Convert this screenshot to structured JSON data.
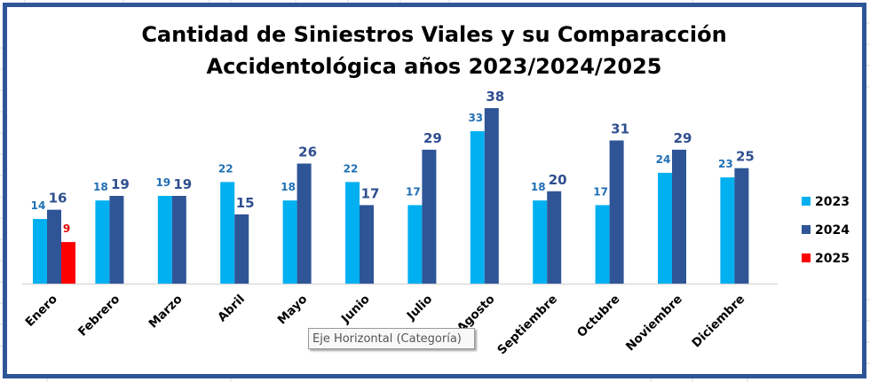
{
  "chart_data": {
    "type": "bar",
    "title": [
      "Cantidad de Siniestros Viales y su Comparacción",
      "Accidentológica años 2023/2024/2025"
    ],
    "xlabel": "",
    "ylabel": "",
    "ylim": [
      0,
      40
    ],
    "grid": false,
    "legend_position": "right",
    "categories": [
      "Enero",
      "Febrero",
      "Marzo",
      "Abril",
      "Mayo",
      "Junio",
      "Julio",
      "Agosto",
      "Septiembre",
      "Octubre",
      "Noviembre",
      "Diciembre"
    ],
    "series": [
      {
        "name": "2023",
        "color": "#00B0F0",
        "label_color": "#1F6FB5",
        "values": [
          14,
          18,
          19,
          22,
          18,
          22,
          17,
          33,
          18,
          17,
          24,
          23
        ]
      },
      {
        "name": "2024",
        "color": "#2F5597",
        "label_color": "#2F4F8F",
        "values": [
          16,
          19,
          19,
          15,
          26,
          17,
          29,
          38,
          20,
          31,
          29,
          25
        ]
      },
      {
        "name": "2025",
        "color": "#FF0000",
        "label_color": "#E00000",
        "values": [
          9,
          null,
          null,
          null,
          null,
          null,
          null,
          null,
          null,
          null,
          null,
          null
        ]
      }
    ]
  },
  "tooltip": {
    "text": "Eje Horizontal (Categoría)"
  },
  "colors": {
    "frame": "#2F5597",
    "axis": "#D9D9D9"
  }
}
